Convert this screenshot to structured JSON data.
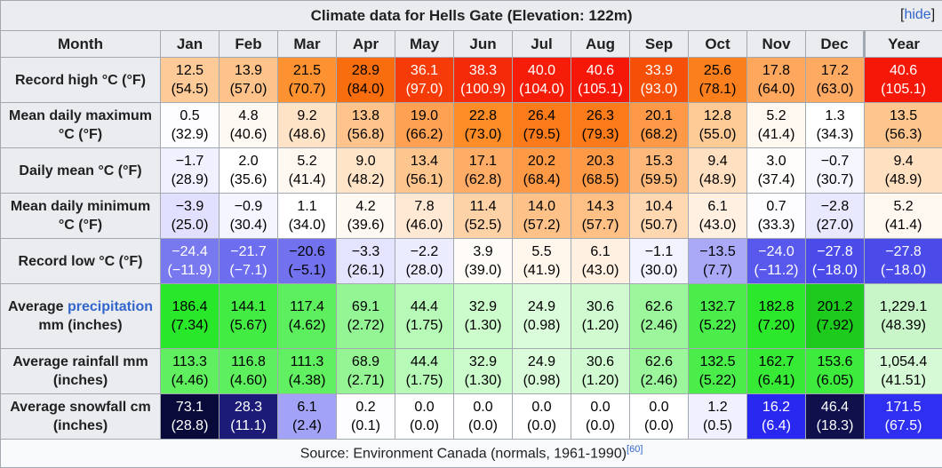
{
  "title": "Climate data for Hells Gate (Elevation: 122m)",
  "hide_link": "hide",
  "columns": [
    "Month",
    "Jan",
    "Feb",
    "Mar",
    "Apr",
    "May",
    "Jun",
    "Jul",
    "Aug",
    "Sep",
    "Oct",
    "Nov",
    "Dec",
    "Year"
  ],
  "rows": [
    {
      "label": "Record high °C (°F)",
      "cells": [
        {
          "v": "12.5",
          "s": "(54.5)",
          "bg": "#fecb98",
          "fg": "#000000"
        },
        {
          "v": "13.9",
          "s": "(57.0)",
          "bg": "#fec38a",
          "fg": "#000000"
        },
        {
          "v": "21.5",
          "s": "(70.7)",
          "bg": "#fe9231",
          "fg": "#000000"
        },
        {
          "v": "28.9",
          "s": "(84.0)",
          "bg": "#f86d0d",
          "fg": "#000000"
        },
        {
          "v": "36.1",
          "s": "(97.0)",
          "bg": "#f53c08",
          "fg": "#ffffff"
        },
        {
          "v": "38.3",
          "s": "(100.9)",
          "bg": "#f52a08",
          "fg": "#ffffff"
        },
        {
          "v": "40.0",
          "s": "(104.0)",
          "bg": "#f51c08",
          "fg": "#ffffff"
        },
        {
          "v": "40.6",
          "s": "(105.1)",
          "bg": "#f51708",
          "fg": "#ffffff"
        },
        {
          "v": "33.9",
          "s": "(93.0)",
          "bg": "#f64f08",
          "fg": "#ffffff"
        },
        {
          "v": "25.6",
          "s": "(78.1)",
          "bg": "#fb7f1d",
          "fg": "#000000"
        },
        {
          "v": "17.8",
          "s": "(64.0)",
          "bg": "#ffa75d",
          "fg": "#000000"
        },
        {
          "v": "17.2",
          "s": "(63.0)",
          "bg": "#ffaa63",
          "fg": "#000000"
        },
        {
          "v": "40.6",
          "s": "(105.1)",
          "bg": "#f51708",
          "fg": "#ffffff"
        }
      ]
    },
    {
      "label": "Mean daily maximum °C (°F)",
      "cells": [
        {
          "v": "0.5",
          "s": "(32.9)",
          "bg": "#fdfdff",
          "fg": "#000000"
        },
        {
          "v": "4.8",
          "s": "(40.6)",
          "bg": "#fff9f4",
          "fg": "#000000"
        },
        {
          "v": "9.2",
          "s": "(48.6)",
          "bg": "#ffe3c7",
          "fg": "#000000"
        },
        {
          "v": "13.8",
          "s": "(56.8)",
          "bg": "#fec48b",
          "fg": "#000000"
        },
        {
          "v": "19.0",
          "s": "(66.2)",
          "bg": "#fea153",
          "fg": "#000000"
        },
        {
          "v": "22.8",
          "s": "(73.0)",
          "bg": "#fe8c27",
          "fg": "#000000"
        },
        {
          "v": "26.4",
          "s": "(79.5)",
          "bg": "#fb7a19",
          "fg": "#000000"
        },
        {
          "v": "26.3",
          "s": "(79.3)",
          "bg": "#fb7b1a",
          "fg": "#000000"
        },
        {
          "v": "20.1",
          "s": "(68.2)",
          "bg": "#fe9a47",
          "fg": "#000000"
        },
        {
          "v": "12.8",
          "s": "(55.0)",
          "bg": "#feca95",
          "fg": "#000000"
        },
        {
          "v": "5.2",
          "s": "(41.4)",
          "bg": "#fff8f1",
          "fg": "#000000"
        },
        {
          "v": "1.3",
          "s": "(34.3)",
          "bg": "#ffffff",
          "fg": "#000000"
        },
        {
          "v": "13.5",
          "s": "(56.3)",
          "bg": "#fec68e",
          "fg": "#000000"
        }
      ]
    },
    {
      "label": "Daily mean °C (°F)",
      "cells": [
        {
          "v": "−1.7",
          "s": "(28.9)",
          "bg": "#f0f0ff",
          "fg": "#000000"
        },
        {
          "v": "2.0",
          "s": "(35.6)",
          "bg": "#ffffff",
          "fg": "#000000"
        },
        {
          "v": "5.2",
          "s": "(41.4)",
          "bg": "#fff8f1",
          "fg": "#000000"
        },
        {
          "v": "9.0",
          "s": "(48.2)",
          "bg": "#ffe4c8",
          "fg": "#000000"
        },
        {
          "v": "13.4",
          "s": "(56.1)",
          "bg": "#fec68f",
          "fg": "#000000"
        },
        {
          "v": "17.1",
          "s": "(62.8)",
          "bg": "#ffac67",
          "fg": "#000000"
        },
        {
          "v": "20.2",
          "s": "(68.4)",
          "bg": "#fe9946",
          "fg": "#000000"
        },
        {
          "v": "20.3",
          "s": "(68.5)",
          "bg": "#fe9945",
          "fg": "#000000"
        },
        {
          "v": "15.3",
          "s": "(59.5)",
          "bg": "#feb97a",
          "fg": "#000000"
        },
        {
          "v": "9.4",
          "s": "(48.9)",
          "bg": "#ffe0c1",
          "fg": "#000000"
        },
        {
          "v": "3.0",
          "s": "(37.4)",
          "bg": "#fefdfb",
          "fg": "#000000"
        },
        {
          "v": "−0.7",
          "s": "(30.7)",
          "bg": "#f6f6ff",
          "fg": "#000000"
        },
        {
          "v": "9.4",
          "s": "(48.9)",
          "bg": "#ffe0c1",
          "fg": "#000000"
        }
      ]
    },
    {
      "label": "Mean daily minimum °C (°F)",
      "cells": [
        {
          "v": "−3.9",
          "s": "(25.0)",
          "bg": "#e1e1ff",
          "fg": "#000000"
        },
        {
          "v": "−0.9",
          "s": "(30.4)",
          "bg": "#f5f5ff",
          "fg": "#000000"
        },
        {
          "v": "1.1",
          "s": "(34.0)",
          "bg": "#ffffff",
          "fg": "#000000"
        },
        {
          "v": "4.2",
          "s": "(39.6)",
          "bg": "#fff9f3",
          "fg": "#000000"
        },
        {
          "v": "7.8",
          "s": "(46.0)",
          "bg": "#ffe9d4",
          "fg": "#000000"
        },
        {
          "v": "11.4",
          "s": "(52.5)",
          "bg": "#fed2a7",
          "fg": "#000000"
        },
        {
          "v": "14.0",
          "s": "(57.2)",
          "bg": "#fec289",
          "fg": "#000000"
        },
        {
          "v": "14.3",
          "s": "(57.7)",
          "bg": "#fec085",
          "fg": "#000000"
        },
        {
          "v": "10.4",
          "s": "(50.7)",
          "bg": "#ffd8b2",
          "fg": "#000000"
        },
        {
          "v": "6.1",
          "s": "(43.0)",
          "bg": "#fff0e2",
          "fg": "#000000"
        },
        {
          "v": "0.7",
          "s": "(33.3)",
          "bg": "#fdfdff",
          "fg": "#000000"
        },
        {
          "v": "−2.8",
          "s": "(27.0)",
          "bg": "#e8e8ff",
          "fg": "#000000"
        },
        {
          "v": "5.2",
          "s": "(41.4)",
          "bg": "#fff8f1",
          "fg": "#000000"
        }
      ]
    },
    {
      "label": "Record low °C (°F)",
      "cells": [
        {
          "v": "−24.4",
          "s": "(−11.9)",
          "bg": "#7878ef",
          "fg": "#ffffff"
        },
        {
          "v": "−21.7",
          "s": "(−7.1)",
          "bg": "#6d6df0",
          "fg": "#ffffff"
        },
        {
          "v": "−20.6",
          "s": "(−5.1)",
          "bg": "#7272ee",
          "fg": "#000000"
        },
        {
          "v": "−3.3",
          "s": "(26.1)",
          "bg": "#e4e4ff",
          "fg": "#000000"
        },
        {
          "v": "−2.2",
          "s": "(28.0)",
          "bg": "#ececff",
          "fg": "#000000"
        },
        {
          "v": "3.9",
          "s": "(39.0)",
          "bg": "#fffcf8",
          "fg": "#000000"
        },
        {
          "v": "5.5",
          "s": "(41.9)",
          "bg": "#fff6ec",
          "fg": "#000000"
        },
        {
          "v": "6.1",
          "s": "(43.0)",
          "bg": "#fff0e2",
          "fg": "#000000"
        },
        {
          "v": "−1.1",
          "s": "(30.0)",
          "bg": "#f3f3ff",
          "fg": "#000000"
        },
        {
          "v": "−13.5",
          "s": "(7.7)",
          "bg": "#a9a9f7",
          "fg": "#000000"
        },
        {
          "v": "−24.0",
          "s": "(−11.2)",
          "bg": "#5858ec",
          "fg": "#ffffff"
        },
        {
          "v": "−27.8",
          "s": "(−18.0)",
          "bg": "#4b4bea",
          "fg": "#ffffff"
        },
        {
          "v": "−27.8",
          "s": "(−18.0)",
          "bg": "#4b4bea",
          "fg": "#ffffff"
        }
      ]
    },
    {
      "label_parts": [
        "Average ",
        "precipitation",
        " mm (inches)"
      ],
      "cells": [
        {
          "v": "186.4",
          "s": "(7.34)",
          "bg": "#29e829",
          "fg": "#000000"
        },
        {
          "v": "144.1",
          "s": "(5.67)",
          "bg": "#43ec43",
          "fg": "#000000"
        },
        {
          "v": "117.4",
          "s": "(4.62)",
          "bg": "#5def5d",
          "fg": "#000000"
        },
        {
          "v": "69.1",
          "s": "(2.72)",
          "bg": "#94f594",
          "fg": "#000000"
        },
        {
          "v": "44.4",
          "s": "(1.75)",
          "bg": "#b7f9b7",
          "fg": "#000000"
        },
        {
          "v": "32.9",
          "s": "(1.30)",
          "bg": "#ccfbcc",
          "fg": "#000000"
        },
        {
          "v": "24.9",
          "s": "(0.98)",
          "bg": "#dbfcdb",
          "fg": "#000000"
        },
        {
          "v": "30.6",
          "s": "(1.20)",
          "bg": "#d0fbd0",
          "fg": "#000000"
        },
        {
          "v": "62.6",
          "s": "(2.46)",
          "bg": "#9cf69c",
          "fg": "#000000"
        },
        {
          "v": "132.7",
          "s": "(5.22)",
          "bg": "#4bed4b",
          "fg": "#000000"
        },
        {
          "v": "182.8",
          "s": "(7.20)",
          "bg": "#2be82b",
          "fg": "#000000"
        },
        {
          "v": "201.2",
          "s": "(7.92)",
          "bg": "#1dcb1d",
          "fg": "#000000"
        },
        {
          "v": "1,229.1",
          "s": "(48.39)",
          "bg": "#c9f6c9",
          "fg": "#000000"
        }
      ]
    },
    {
      "label": "Average rainfall mm (inches)",
      "cells": [
        {
          "v": "113.3",
          "s": "(4.46)",
          "bg": "#5fef5f",
          "fg": "#000000"
        },
        {
          "v": "116.8",
          "s": "(4.60)",
          "bg": "#5def5d",
          "fg": "#000000"
        },
        {
          "v": "111.3",
          "s": "(4.38)",
          "bg": "#61f061",
          "fg": "#000000"
        },
        {
          "v": "68.9",
          "s": "(2.71)",
          "bg": "#95f595",
          "fg": "#000000"
        },
        {
          "v": "44.4",
          "s": "(1.75)",
          "bg": "#b7f9b7",
          "fg": "#000000"
        },
        {
          "v": "32.9",
          "s": "(1.30)",
          "bg": "#ccfbcc",
          "fg": "#000000"
        },
        {
          "v": "24.9",
          "s": "(0.98)",
          "bg": "#dbfcdb",
          "fg": "#000000"
        },
        {
          "v": "30.6",
          "s": "(1.20)",
          "bg": "#d0fbd0",
          "fg": "#000000"
        },
        {
          "v": "62.6",
          "s": "(2.46)",
          "bg": "#9cf69c",
          "fg": "#000000"
        },
        {
          "v": "132.5",
          "s": "(5.22)",
          "bg": "#4bed4b",
          "fg": "#000000"
        },
        {
          "v": "162.7",
          "s": "(6.41)",
          "bg": "#36ea36",
          "fg": "#000000"
        },
        {
          "v": "153.6",
          "s": "(6.05)",
          "bg": "#3ceb3c",
          "fg": "#000000"
        },
        {
          "v": "1,054.4",
          "s": "(41.51)",
          "bg": "#d6f9d6",
          "fg": "#000000"
        }
      ]
    },
    {
      "label": "Average snowfall cm (inches)",
      "cells": [
        {
          "v": "73.1",
          "s": "(28.8)",
          "bg": "#0a0a3a",
          "fg": "#ffffff"
        },
        {
          "v": "28.3",
          "s": "(11.1)",
          "bg": "#1c1c78",
          "fg": "#ffffff"
        },
        {
          "v": "6.1",
          "s": "(2.4)",
          "bg": "#a2a2f6",
          "fg": "#000000"
        },
        {
          "v": "0.2",
          "s": "(0.1)",
          "bg": "#fdfdff",
          "fg": "#000000"
        },
        {
          "v": "0.0",
          "s": "(0.0)",
          "bg": "#ffffff",
          "fg": "#000000"
        },
        {
          "v": "0.0",
          "s": "(0.0)",
          "bg": "#ffffff",
          "fg": "#000000"
        },
        {
          "v": "0.0",
          "s": "(0.0)",
          "bg": "#ffffff",
          "fg": "#000000"
        },
        {
          "v": "0.0",
          "s": "(0.0)",
          "bg": "#ffffff",
          "fg": "#000000"
        },
        {
          "v": "0.0",
          "s": "(0.0)",
          "bg": "#ffffff",
          "fg": "#000000"
        },
        {
          "v": "1.2",
          "s": "(0.5)",
          "bg": "#f0f0ff",
          "fg": "#000000"
        },
        {
          "v": "16.2",
          "s": "(6.4)",
          "bg": "#2828f0",
          "fg": "#ffffff"
        },
        {
          "v": "46.4",
          "s": "(18.3)",
          "bg": "#10104c",
          "fg": "#ffffff"
        },
        {
          "v": "171.5",
          "s": "(67.5)",
          "bg": "#2f2ff2",
          "fg": "#ffffff"
        }
      ]
    }
  ],
  "source": {
    "text": "Source: Environment Canada (normals, 1961-1990)",
    "ref": "[60]"
  }
}
